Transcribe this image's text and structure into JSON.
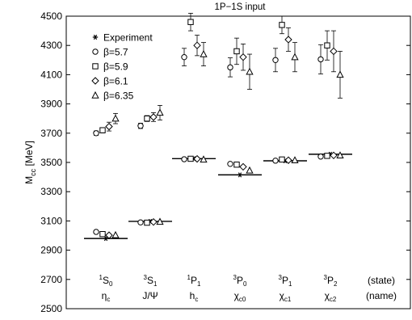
{
  "chart_data": {
    "type": "scatter",
    "title": "1P−1S input",
    "ylabel": {
      "main": "M",
      "sub": "cc",
      "unit": " [MeV]"
    },
    "ylim": [
      2500,
      4500
    ],
    "yticks": [
      2500,
      2700,
      2900,
      3100,
      3300,
      3500,
      3700,
      3900,
      4100,
      4300,
      4500
    ],
    "grid": false,
    "legend_position": "top-left",
    "categories": [
      {
        "state": {
          "pre": "1",
          "base": "S",
          "sub": "0"
        },
        "name": {
          "base": "η",
          "sub": "c"
        }
      },
      {
        "state": {
          "pre": "3",
          "base": "S",
          "sub": "1"
        },
        "name": {
          "base": "J/Ψ",
          "sub": ""
        }
      },
      {
        "state": {
          "pre": "1",
          "base": "P",
          "sub": "1"
        },
        "name": {
          "base": "h",
          "sub": "c"
        }
      },
      {
        "state": {
          "pre": "3",
          "base": "P",
          "sub": "0"
        },
        "name": {
          "base": "χ",
          "sub": "c0"
        }
      },
      {
        "state": {
          "pre": "3",
          "base": "P",
          "sub": "1"
        },
        "name": {
          "base": "χ",
          "sub": "c1"
        }
      },
      {
        "state": {
          "pre": "3",
          "base": "P",
          "sub": "2"
        },
        "name": {
          "base": "χ",
          "sub": "c2"
        }
      }
    ],
    "row_labels": {
      "state": "(state)",
      "name": "(name)"
    },
    "experiment": {
      "name": "Experiment",
      "values": [
        2980,
        3097,
        3526,
        3415,
        3511,
        3556
      ]
    },
    "series": [
      {
        "name": "β=5.7",
        "marker": "circle",
        "lower": [
          3025,
          3090,
          3522,
          3490,
          3512,
          3540
        ],
        "upper": [
          3700,
          3750,
          4220,
          4150,
          4200,
          4205
        ],
        "upper_err": [
          15,
          18,
          60,
          65,
          80,
          100
        ]
      },
      {
        "name": "β=5.9",
        "marker": "square",
        "lower": [
          3010,
          3088,
          3525,
          3485,
          3520,
          3545
        ],
        "upper": [
          3720,
          3800,
          4460,
          4260,
          4440,
          4300
        ],
        "upper_err": [
          18,
          20,
          60,
          90,
          60,
          100
        ]
      },
      {
        "name": "β=6.1",
        "marker": "diamond",
        "lower": [
          3002,
          3093,
          3524,
          3470,
          3515,
          3548
        ],
        "upper": [
          3745,
          3810,
          4300,
          4220,
          4340,
          4260
        ],
        "upper_err": [
          30,
          30,
          70,
          90,
          80,
          140
        ]
      },
      {
        "name": "β=6.35",
        "marker": "triangle",
        "lower": [
          3003,
          3094,
          3520,
          3445,
          3515,
          3548
        ],
        "upper": [
          3800,
          3840,
          4240,
          4120,
          4220,
          4100
        ],
        "upper_err": [
          35,
          50,
          80,
          120,
          100,
          160
        ]
      }
    ]
  }
}
